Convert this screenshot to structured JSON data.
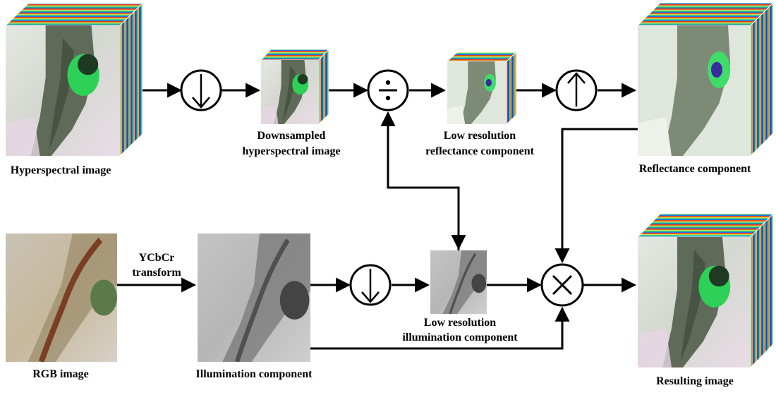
{
  "labels": {
    "hyperspectral_image": "Hyperspectral image",
    "downsampled_line1": "Downsampled",
    "downsampled_line2": "hyperspectral image",
    "low_res_reflectance_line1": "Low resolution",
    "low_res_reflectance_line2": "reflectance component",
    "reflectance_component": "Reflectance component",
    "rgb_image": "RGB image",
    "ycbcr_line1": "YCbCr",
    "ycbcr_line2": "transform",
    "illumination_component": "Illumination component",
    "low_res_illumination_line1": "Low resolution",
    "low_res_illumination_line2": "illumination component",
    "resulting_image": "Resulting image"
  },
  "operators": {
    "downsample": "↓",
    "divide": "÷",
    "upsample": "↑",
    "multiply": "×"
  },
  "colors": {
    "line": "#000000",
    "terrain_light": "#d6dcd6",
    "terrain_dark": "#5d6a55",
    "vegetation": "#2fd25a",
    "rgb_terrain": "#c8b79a",
    "rgb_channel": "#8a5a3a",
    "gray_light": "#bdbdbd",
    "gray_dark": "#555555"
  }
}
